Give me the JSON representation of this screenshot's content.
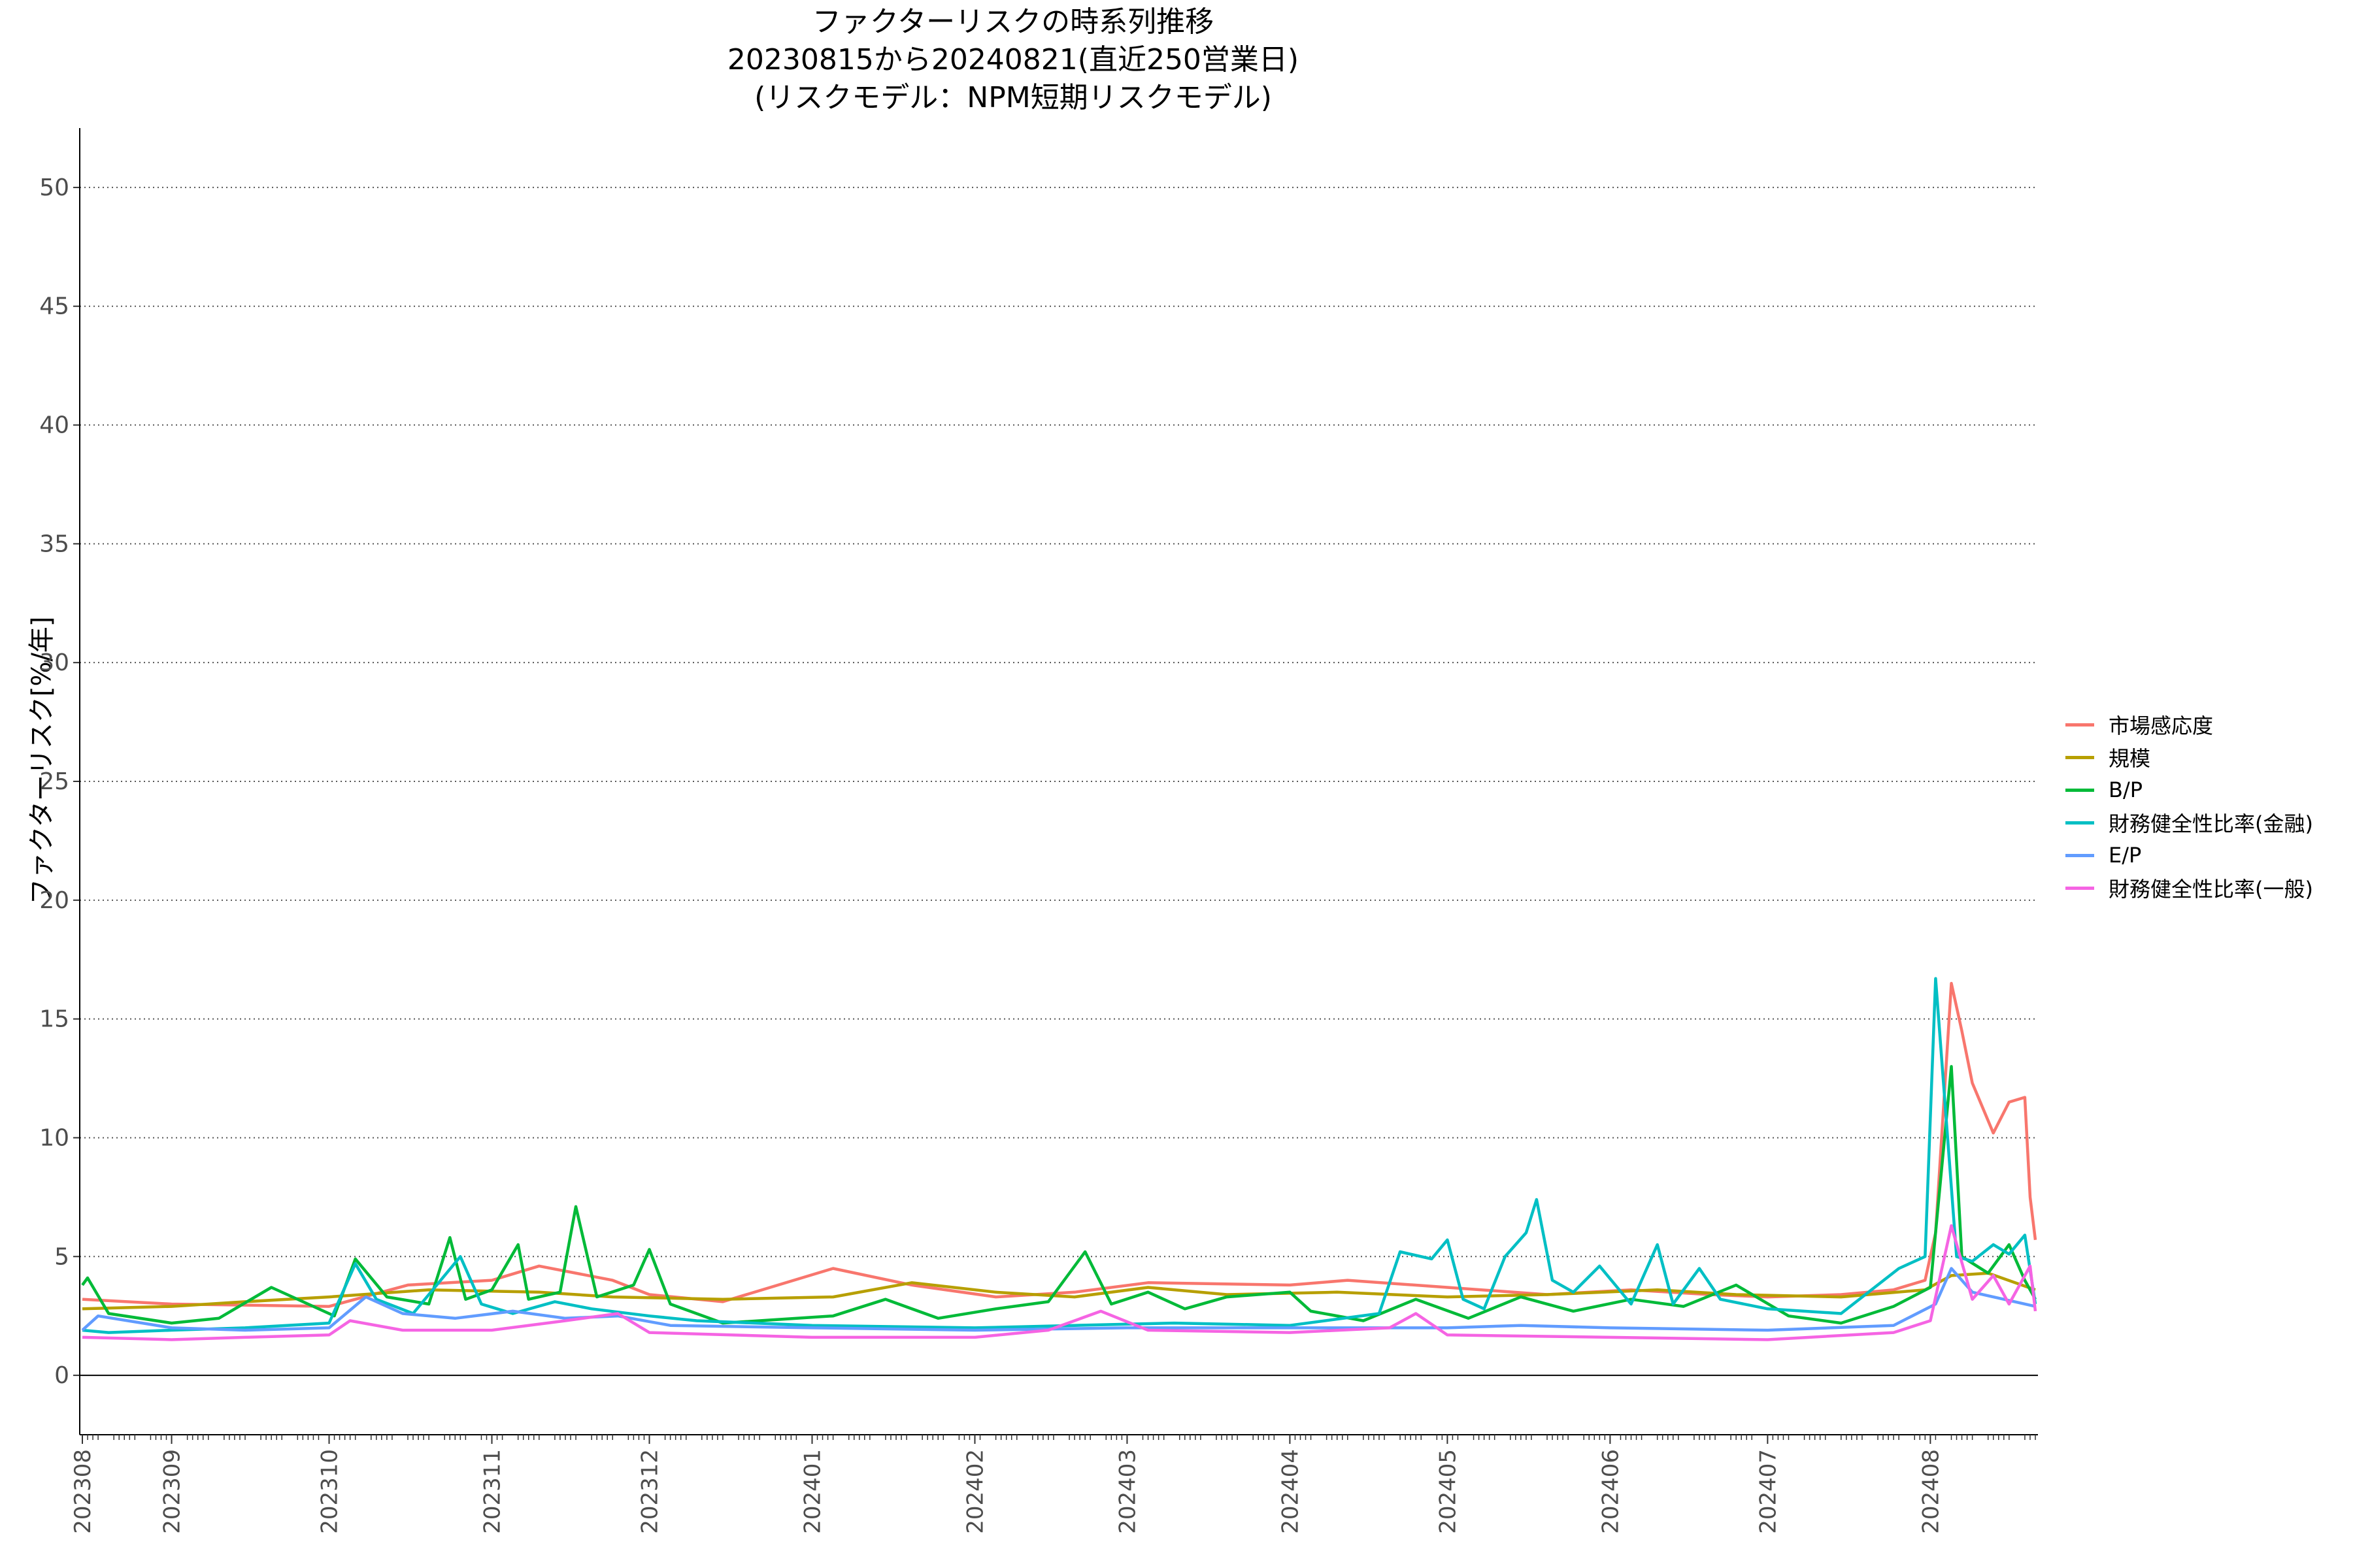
{
  "title": {
    "line1": "ファクターリスクの時系列推移",
    "line2": "20230815から20240821(直近250営業日)",
    "line3": "(リスクモデル：NPM短期リスクモデル)"
  },
  "chart_data": {
    "type": "line",
    "title": "ファクターリスクの時系列推移 20230815から20240821(直近250営業日) (リスクモデル：NPM短期リスクモデル)",
    "xlabel": "",
    "ylabel": "ファクターリスク[%/年]",
    "ylim": [
      -2.5,
      52.5
    ],
    "yticks": [
      0,
      5,
      10,
      15,
      20,
      25,
      30,
      35,
      40,
      45,
      50
    ],
    "xticks": [
      "202308",
      "202309",
      "202310",
      "202311",
      "202312",
      "202401",
      "202402",
      "202403",
      "202404",
      "202405",
      "202406",
      "202407",
      "202408"
    ],
    "grid": "horizontal dotted",
    "legend_position": "right",
    "start_date": "2023-08-15",
    "end_date": "2024-08-21",
    "series": [
      {
        "name": "市場感応度",
        "color": "#F8766D",
        "points": [
          [
            "2023-08-15",
            3.2
          ],
          [
            "2023-09-01",
            3.0
          ],
          [
            "2023-10-01",
            2.9
          ],
          [
            "2023-10-16",
            3.8
          ],
          [
            "2023-11-01",
            4.0
          ],
          [
            "2023-11-10",
            4.6
          ],
          [
            "2023-11-24",
            4.0
          ],
          [
            "2023-12-01",
            3.4
          ],
          [
            "2023-12-15",
            3.1
          ],
          [
            "2024-01-05",
            4.5
          ],
          [
            "2024-01-20",
            3.8
          ],
          [
            "2024-02-05",
            3.3
          ],
          [
            "2024-02-20",
            3.5
          ],
          [
            "2024-03-05",
            3.9
          ],
          [
            "2024-04-01",
            3.8
          ],
          [
            "2024-04-12",
            4.0
          ],
          [
            "2024-05-01",
            3.7
          ],
          [
            "2024-05-20",
            3.4
          ],
          [
            "2024-06-05",
            3.6
          ],
          [
            "2024-06-20",
            3.4
          ],
          [
            "2024-07-01",
            3.3
          ],
          [
            "2024-07-15",
            3.4
          ],
          [
            "2024-07-25",
            3.6
          ],
          [
            "2024-07-31",
            4.0
          ],
          [
            "2024-08-02",
            6.0
          ],
          [
            "2024-08-05",
            16.5
          ],
          [
            "2024-08-07",
            14.5
          ],
          [
            "2024-08-09",
            12.3
          ],
          [
            "2024-08-13",
            10.2
          ],
          [
            "2024-08-16",
            11.5
          ],
          [
            "2024-08-19",
            11.7
          ],
          [
            "2024-08-20",
            7.5
          ],
          [
            "2024-08-21",
            5.7
          ]
        ]
      },
      {
        "name": "規模",
        "color": "#B79F00",
        "points": [
          [
            "2023-08-15",
            2.8
          ],
          [
            "2023-09-01",
            2.9
          ],
          [
            "2023-09-15",
            3.1
          ],
          [
            "2023-10-01",
            3.3
          ],
          [
            "2023-10-20",
            3.6
          ],
          [
            "2023-11-10",
            3.5
          ],
          [
            "2023-11-24",
            3.3
          ],
          [
            "2023-12-15",
            3.2
          ],
          [
            "2024-01-05",
            3.3
          ],
          [
            "2024-01-20",
            3.9
          ],
          [
            "2024-02-05",
            3.5
          ],
          [
            "2024-02-20",
            3.3
          ],
          [
            "2024-03-05",
            3.7
          ],
          [
            "2024-03-20",
            3.4
          ],
          [
            "2024-04-10",
            3.5
          ],
          [
            "2024-05-01",
            3.3
          ],
          [
            "2024-05-20",
            3.4
          ],
          [
            "2024-06-10",
            3.6
          ],
          [
            "2024-06-25",
            3.4
          ],
          [
            "2024-07-15",
            3.3
          ],
          [
            "2024-07-31",
            3.6
          ],
          [
            "2024-08-05",
            4.2
          ],
          [
            "2024-08-12",
            4.3
          ],
          [
            "2024-08-21",
            3.6
          ]
        ]
      },
      {
        "name": "B/P",
        "color": "#00BA38",
        "points": [
          [
            "2023-08-15",
            3.8
          ],
          [
            "2023-08-16",
            4.1
          ],
          [
            "2023-08-20",
            2.6
          ],
          [
            "2023-09-01",
            2.2
          ],
          [
            "2023-09-10",
            2.4
          ],
          [
            "2023-09-20",
            3.7
          ],
          [
            "2023-10-02",
            2.5
          ],
          [
            "2023-10-06",
            4.9
          ],
          [
            "2023-10-12",
            3.3
          ],
          [
            "2023-10-20",
            3.0
          ],
          [
            "2023-10-24",
            5.8
          ],
          [
            "2023-10-27",
            3.2
          ],
          [
            "2023-11-01",
            3.6
          ],
          [
            "2023-11-06",
            5.5
          ],
          [
            "2023-11-08",
            3.2
          ],
          [
            "2023-11-14",
            3.5
          ],
          [
            "2023-11-17",
            7.1
          ],
          [
            "2023-11-21",
            3.3
          ],
          [
            "2023-11-28",
            3.8
          ],
          [
            "2023-12-01",
            5.3
          ],
          [
            "2023-12-05",
            3.0
          ],
          [
            "2023-12-15",
            2.2
          ],
          [
            "2024-01-05",
            2.5
          ],
          [
            "2024-01-15",
            3.2
          ],
          [
            "2024-01-25",
            2.4
          ],
          [
            "2024-02-05",
            2.8
          ],
          [
            "2024-02-15",
            3.1
          ],
          [
            "2024-02-22",
            5.2
          ],
          [
            "2024-02-27",
            3.0
          ],
          [
            "2024-03-05",
            3.5
          ],
          [
            "2024-03-12",
            2.8
          ],
          [
            "2024-03-20",
            3.3
          ],
          [
            "2024-04-01",
            3.5
          ],
          [
            "2024-04-05",
            2.7
          ],
          [
            "2024-04-15",
            2.3
          ],
          [
            "2024-04-25",
            3.2
          ],
          [
            "2024-05-05",
            2.4
          ],
          [
            "2024-05-15",
            3.3
          ],
          [
            "2024-05-25",
            2.7
          ],
          [
            "2024-06-05",
            3.2
          ],
          [
            "2024-06-15",
            2.9
          ],
          [
            "2024-06-25",
            3.8
          ],
          [
            "2024-07-05",
            2.5
          ],
          [
            "2024-07-15",
            2.2
          ],
          [
            "2024-07-25",
            2.9
          ],
          [
            "2024-08-01",
            3.7
          ],
          [
            "2024-08-05",
            13.0
          ],
          [
            "2024-08-07",
            5.0
          ],
          [
            "2024-08-12",
            4.3
          ],
          [
            "2024-08-16",
            5.5
          ],
          [
            "2024-08-19",
            4.0
          ],
          [
            "2024-08-21",
            3.2
          ]
        ]
      },
      {
        "name": "財務健全性比率(金融)",
        "color": "#00BFC4",
        "points": [
          [
            "2023-08-15",
            1.9
          ],
          [
            "2023-08-20",
            1.8
          ],
          [
            "2023-09-01",
            1.9
          ],
          [
            "2023-09-15",
            2.0
          ],
          [
            "2023-10-01",
            2.2
          ],
          [
            "2023-10-06",
            4.7
          ],
          [
            "2023-10-10",
            3.2
          ],
          [
            "2023-10-17",
            2.6
          ],
          [
            "2023-10-26",
            5.0
          ],
          [
            "2023-10-30",
            3.0
          ],
          [
            "2023-11-05",
            2.6
          ],
          [
            "2023-11-13",
            3.1
          ],
          [
            "2023-11-20",
            2.8
          ],
          [
            "2023-12-01",
            2.5
          ],
          [
            "2023-12-10",
            2.3
          ],
          [
            "2024-01-01",
            2.1
          ],
          [
            "2024-02-01",
            2.0
          ],
          [
            "2024-02-20",
            2.1
          ],
          [
            "2024-03-10",
            2.2
          ],
          [
            "2024-04-01",
            2.1
          ],
          [
            "2024-04-18",
            2.6
          ],
          [
            "2024-04-22",
            5.2
          ],
          [
            "2024-04-28",
            4.9
          ],
          [
            "2024-05-01",
            5.7
          ],
          [
            "2024-05-04",
            3.2
          ],
          [
            "2024-05-08",
            2.8
          ],
          [
            "2024-05-12",
            5.0
          ],
          [
            "2024-05-16",
            6.0
          ],
          [
            "2024-05-18",
            7.4
          ],
          [
            "2024-05-21",
            4.0
          ],
          [
            "2024-05-25",
            3.5
          ],
          [
            "2024-05-30",
            4.6
          ],
          [
            "2024-06-05",
            3.0
          ],
          [
            "2024-06-10",
            5.5
          ],
          [
            "2024-06-13",
            3.0
          ],
          [
            "2024-06-18",
            4.5
          ],
          [
            "2024-06-22",
            3.2
          ],
          [
            "2024-07-01",
            2.8
          ],
          [
            "2024-07-15",
            2.6
          ],
          [
            "2024-07-26",
            4.5
          ],
          [
            "2024-07-31",
            5.0
          ],
          [
            "2024-08-02",
            16.7
          ],
          [
            "2024-08-06",
            5.0
          ],
          [
            "2024-08-09",
            4.8
          ],
          [
            "2024-08-13",
            5.5
          ],
          [
            "2024-08-16",
            5.1
          ],
          [
            "2024-08-19",
            5.9
          ],
          [
            "2024-08-21",
            3.0
          ]
        ]
      },
      {
        "name": "E/P",
        "color": "#619CFF",
        "points": [
          [
            "2023-08-15",
            1.9
          ],
          [
            "2023-08-18",
            2.5
          ],
          [
            "2023-09-01",
            2.0
          ],
          [
            "2023-09-15",
            1.9
          ],
          [
            "2023-10-01",
            2.0
          ],
          [
            "2023-10-08",
            3.3
          ],
          [
            "2023-10-15",
            2.6
          ],
          [
            "2023-10-25",
            2.4
          ],
          [
            "2023-11-05",
            2.7
          ],
          [
            "2023-11-15",
            2.4
          ],
          [
            "2023-11-25",
            2.5
          ],
          [
            "2023-12-05",
            2.1
          ],
          [
            "2024-01-01",
            2.0
          ],
          [
            "2024-02-01",
            1.9
          ],
          [
            "2024-03-01",
            2.0
          ],
          [
            "2024-04-01",
            2.0
          ],
          [
            "2024-05-01",
            2.0
          ],
          [
            "2024-05-15",
            2.1
          ],
          [
            "2024-06-01",
            2.0
          ],
          [
            "2024-07-01",
            1.9
          ],
          [
            "2024-07-25",
            2.1
          ],
          [
            "2024-08-02",
            3.0
          ],
          [
            "2024-08-05",
            4.5
          ],
          [
            "2024-08-09",
            3.5
          ],
          [
            "2024-08-15",
            3.2
          ],
          [
            "2024-08-21",
            2.9
          ]
        ]
      },
      {
        "name": "財務健全性比率(一般)",
        "color": "#F564E3",
        "points": [
          [
            "2023-08-15",
            1.6
          ],
          [
            "2023-09-01",
            1.5
          ],
          [
            "2023-09-15",
            1.6
          ],
          [
            "2023-10-01",
            1.7
          ],
          [
            "2023-10-05",
            2.3
          ],
          [
            "2023-10-15",
            1.9
          ],
          [
            "2023-11-01",
            1.9
          ],
          [
            "2023-11-15",
            2.3
          ],
          [
            "2023-11-25",
            2.6
          ],
          [
            "2023-12-01",
            1.8
          ],
          [
            "2024-01-01",
            1.6
          ],
          [
            "2024-02-01",
            1.6
          ],
          [
            "2024-02-15",
            1.9
          ],
          [
            "2024-02-25",
            2.7
          ],
          [
            "2024-03-05",
            1.9
          ],
          [
            "2024-04-01",
            1.8
          ],
          [
            "2024-04-20",
            2.0
          ],
          [
            "2024-04-25",
            2.6
          ],
          [
            "2024-05-01",
            1.7
          ],
          [
            "2024-06-01",
            1.6
          ],
          [
            "2024-07-01",
            1.5
          ],
          [
            "2024-07-25",
            1.8
          ],
          [
            "2024-08-01",
            2.3
          ],
          [
            "2024-08-05",
            6.3
          ],
          [
            "2024-08-09",
            3.2
          ],
          [
            "2024-08-13",
            4.2
          ],
          [
            "2024-08-16",
            3.0
          ],
          [
            "2024-08-20",
            4.6
          ],
          [
            "2024-08-21",
            2.7
          ]
        ]
      }
    ]
  }
}
